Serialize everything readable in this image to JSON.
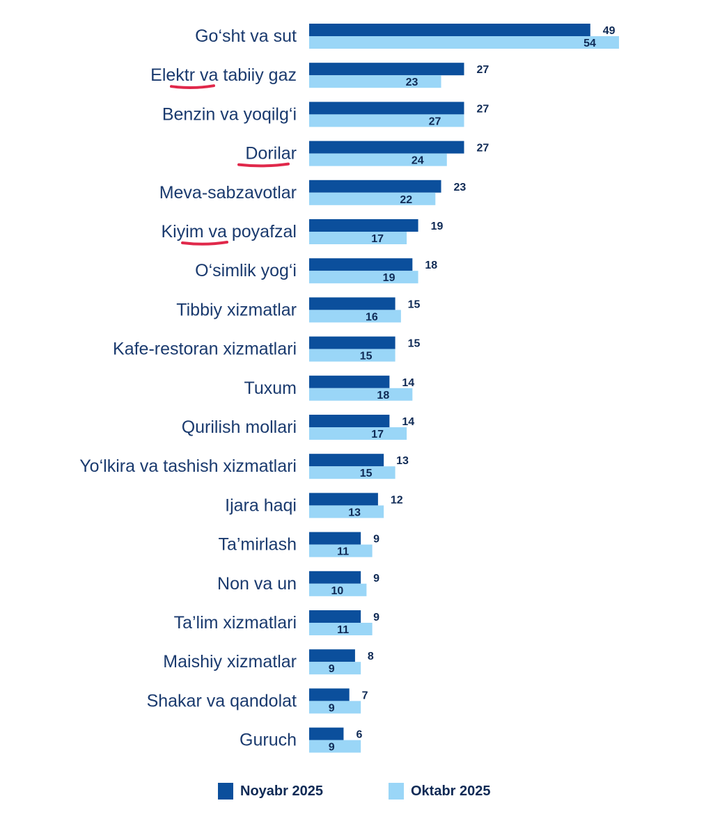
{
  "chart_data": {
    "type": "bar",
    "orientation": "horizontal",
    "categories": [
      "Go‘sht va sut",
      "Elektr va tabiiy gaz",
      "Benzin va yoqilg‘i",
      "Dorilar",
      "Meva-sabzavotlar",
      "Kiyim va poyafzal",
      "O‘simlik yog‘i",
      "Tibbiy xizmatlar",
      "Kafe-restoran xizmatlari",
      "Tuxum",
      "Qurilish mollari",
      "Yo‘lkira va tashish xizmatlari",
      "Ijara haqi",
      "Ta’mirlash",
      "Non va un",
      "Ta’lim xizmatlari",
      "Maishiy xizmatlar",
      "Shakar va qandolat",
      "Guruch"
    ],
    "series": [
      {
        "name": "Noyabr 2025",
        "color": "#0b4f9c",
        "values": [
          49,
          27,
          27,
          27,
          23,
          19,
          18,
          15,
          15,
          14,
          14,
          13,
          12,
          9,
          9,
          9,
          8,
          7,
          6
        ]
      },
      {
        "name": "Oktabr 2025",
        "color": "#9ad6f7",
        "values": [
          54,
          23,
          27,
          24,
          22,
          17,
          19,
          16,
          15,
          18,
          17,
          15,
          13,
          11,
          10,
          11,
          9,
          9,
          9
        ]
      }
    ],
    "title": "",
    "xlabel": "",
    "ylabel": "",
    "xlim": [
      0,
      54
    ],
    "grid": false,
    "legend": "bottom-center",
    "annotation_color": "#e0284a"
  }
}
